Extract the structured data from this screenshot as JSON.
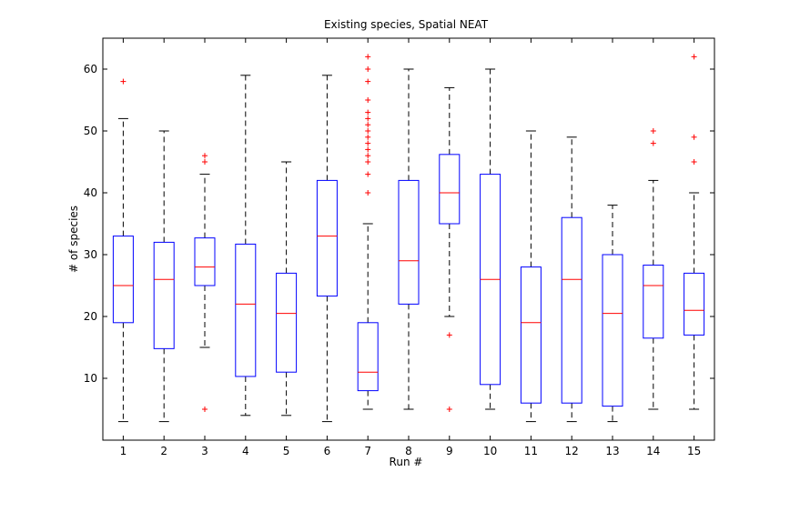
{
  "chart_data": {
    "type": "box",
    "title": "Existing species, Spatial NEAT",
    "xlabel": "Run #",
    "ylabel": "# of species",
    "ylim": [
      0,
      65
    ],
    "yticks": [
      10,
      20,
      30,
      40,
      50,
      60
    ],
    "grid": false,
    "categories": [
      "1",
      "2",
      "3",
      "4",
      "5",
      "6",
      "7",
      "8",
      "9",
      "10",
      "11",
      "12",
      "13",
      "14",
      "15"
    ],
    "boxes": [
      {
        "category": "1",
        "whisker_low": 3,
        "q1": 19,
        "median": 25,
        "q3": 33,
        "whisker_high": 52,
        "outliers": [
          58
        ]
      },
      {
        "category": "2",
        "whisker_low": 3,
        "q1": 14.8,
        "median": 26,
        "q3": 32,
        "whisker_high": 50,
        "outliers": []
      },
      {
        "category": "3",
        "whisker_low": 15,
        "q1": 25,
        "median": 28,
        "q3": 32.7,
        "whisker_high": 43,
        "outliers": [
          45,
          46,
          5
        ]
      },
      {
        "category": "4",
        "whisker_low": 4,
        "q1": 10.3,
        "median": 22,
        "q3": 31.7,
        "whisker_high": 59,
        "outliers": []
      },
      {
        "category": "5",
        "whisker_low": 4,
        "q1": 11,
        "median": 20.5,
        "q3": 27,
        "whisker_high": 45,
        "outliers": []
      },
      {
        "category": "6",
        "whisker_low": 3,
        "q1": 23.3,
        "median": 33,
        "q3": 42,
        "whisker_high": 59,
        "outliers": []
      },
      {
        "category": "7",
        "whisker_low": 5,
        "q1": 8,
        "median": 11,
        "q3": 19,
        "whisker_high": 35,
        "outliers": [
          40,
          43,
          45,
          46,
          47,
          48,
          49,
          50,
          51,
          52,
          53,
          55,
          58,
          60,
          62
        ]
      },
      {
        "category": "8",
        "whisker_low": 5,
        "q1": 22,
        "median": 29,
        "q3": 42,
        "whisker_high": 60,
        "outliers": []
      },
      {
        "category": "9",
        "whisker_low": 20,
        "q1": 35,
        "median": 40,
        "q3": 46.2,
        "whisker_high": 57,
        "outliers": [
          17,
          5
        ]
      },
      {
        "category": "10",
        "whisker_low": 5,
        "q1": 9,
        "median": 26,
        "q3": 43,
        "whisker_high": 60,
        "outliers": []
      },
      {
        "category": "11",
        "whisker_low": 3,
        "q1": 6,
        "median": 19,
        "q3": 28,
        "whisker_high": 50,
        "outliers": []
      },
      {
        "category": "12",
        "whisker_low": 3,
        "q1": 6,
        "median": 26,
        "q3": 36,
        "whisker_high": 49,
        "outliers": []
      },
      {
        "category": "13",
        "whisker_low": 3,
        "q1": 5.5,
        "median": 20.5,
        "q3": 30,
        "whisker_high": 38,
        "outliers": []
      },
      {
        "category": "14",
        "whisker_low": 5,
        "q1": 16.5,
        "median": 25,
        "q3": 28.3,
        "whisker_high": 42,
        "outliers": [
          48,
          50
        ]
      },
      {
        "category": "15",
        "whisker_low": 5,
        "q1": 17,
        "median": 21,
        "q3": 27,
        "whisker_high": 40,
        "outliers": [
          45,
          49,
          62
        ]
      }
    ],
    "colors": {
      "box": "#0000ff",
      "median": "#ff0000",
      "whisker": "#000000",
      "outlier": "#ff0000",
      "axes": "#000000"
    }
  }
}
